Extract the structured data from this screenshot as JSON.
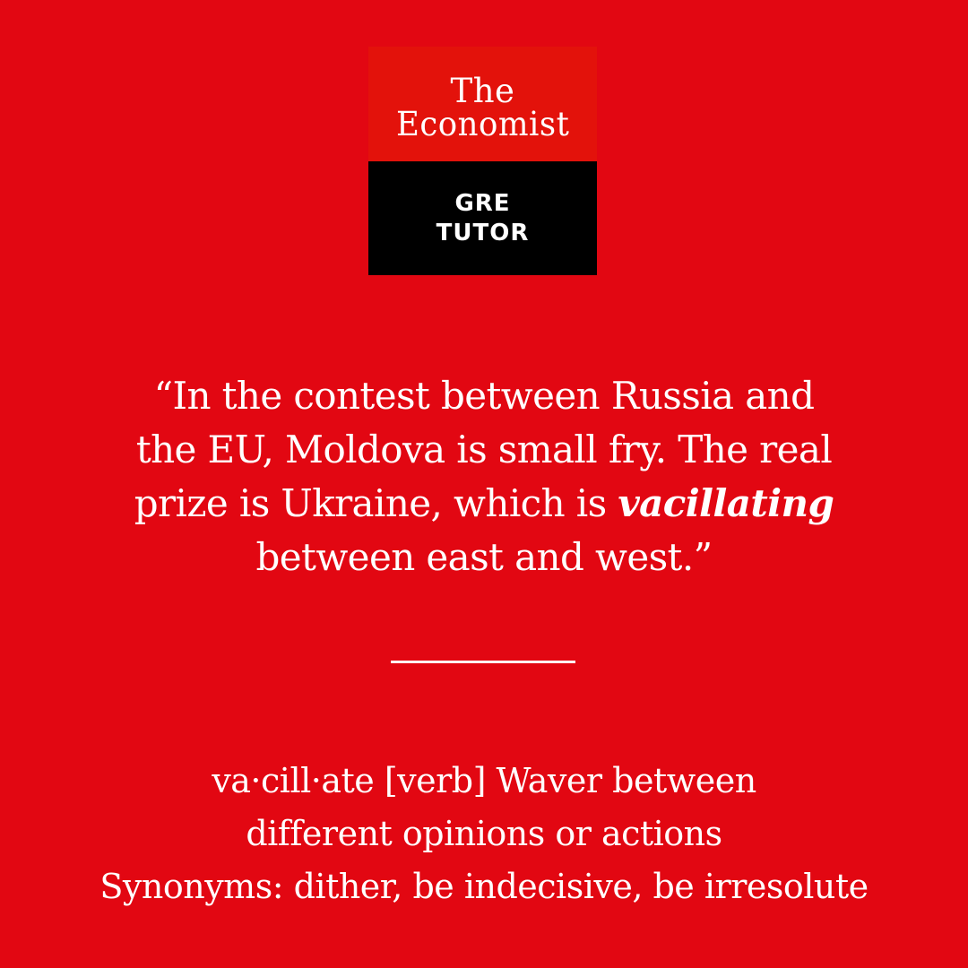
{
  "logo": {
    "line1": "The",
    "line2": "Economist",
    "tag_line1": "GRE",
    "tag_line2": "TUTOR"
  },
  "quote": {
    "line1": "“In the contest between Russia and",
    "line2": "the EU, Moldova is small fry. The real",
    "line3_before": "prize is Ukraine, which is ",
    "line3_emphasis": "vacillating",
    "line4": "between east and west.”"
  },
  "definition": {
    "line1": "va·cill·ate [verb] Waver between",
    "line2": "different opinions or actions",
    "line3": "Synonyms: dither, be indecisive, be irresolute"
  },
  "colors": {
    "background": "#e20712",
    "logo_top": "#e3120b",
    "logo_bottom": "#000000",
    "text": "#ffffff"
  }
}
